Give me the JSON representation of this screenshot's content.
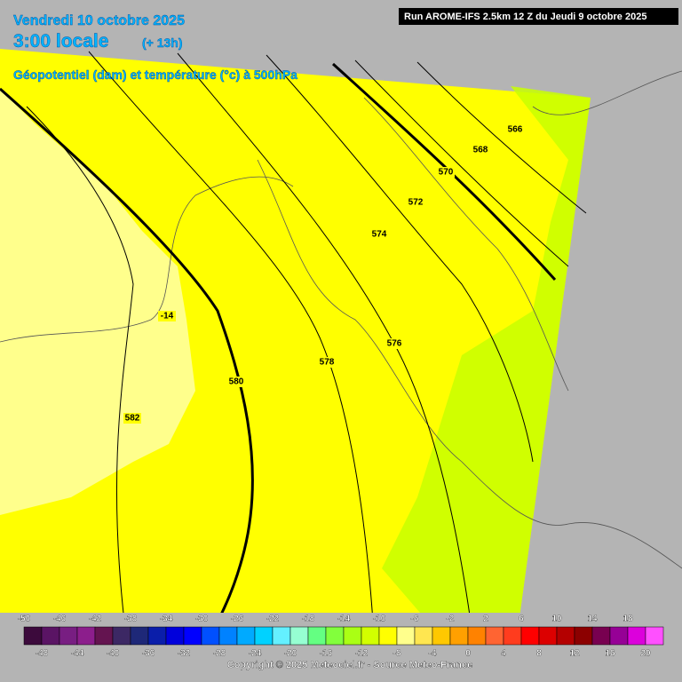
{
  "header": {
    "date": "Vendredi 10 octobre 2025",
    "time": "3:00 locale",
    "lead": "(+ 13h)",
    "subtitle": "Géopotentiel (dam) et température (°c) à 500hPa",
    "run": "Run AROME-IFS 2.5km 12 Z du Jeudi 9 octobre 2025"
  },
  "contour_labels": [
    566,
    568,
    570,
    572,
    574,
    576,
    578,
    580,
    582,
    -14
  ],
  "color_scale": {
    "upper_labels": [
      -50,
      -46,
      -42,
      -38,
      -34,
      -30,
      -26,
      -22,
      -18,
      -14,
      -10,
      -6,
      -2,
      2,
      6,
      10,
      14,
      18
    ],
    "lower_labels": [
      -48,
      -44,
      -40,
      -36,
      -32,
      -28,
      -24,
      -20,
      -16,
      -12,
      -8,
      -4,
      0,
      4,
      8,
      12,
      16,
      20
    ],
    "colors": [
      "#3c0a3c",
      "#5a1464",
      "#781e82",
      "#8c1e8c",
      "#641450",
      "#3c2864",
      "#1e2878",
      "#0a1eaa",
      "#0000dc",
      "#0000ff",
      "#0050ff",
      "#0082ff",
      "#00aaff",
      "#00d2ff",
      "#64f0ff",
      "#96ffd2",
      "#64ff82",
      "#82ff3c",
      "#aaff14",
      "#d2ff00",
      "#ffff00",
      "#ffff8c",
      "#ffe650",
      "#ffc800",
      "#ffa000",
      "#ff8200",
      "#ff6432",
      "#ff3c1e",
      "#ff0000",
      "#dc0000",
      "#b40000",
      "#8c0000",
      "#780050",
      "#960096",
      "#dc00dc",
      "#ff50ff"
    ]
  },
  "footer": {
    "copyright": "Copyright © 2025 Meteociel.fr - Source Meteo-France"
  }
}
